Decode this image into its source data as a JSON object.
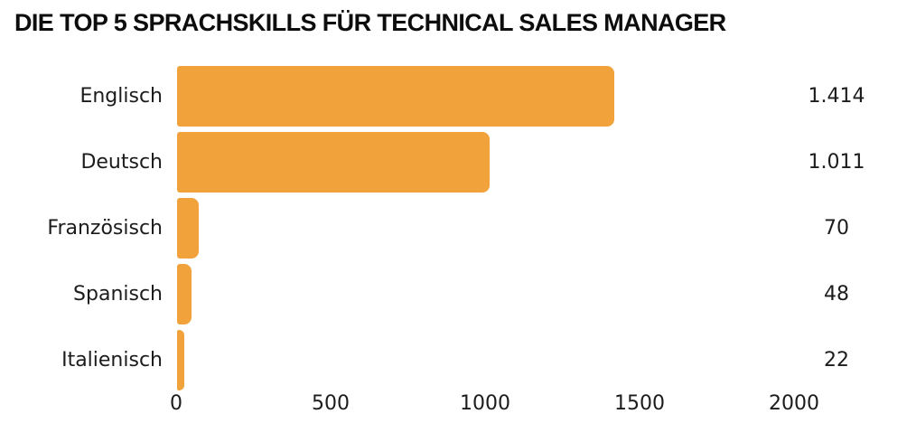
{
  "chart_data": {
    "type": "bar",
    "orientation": "horizontal",
    "title": "DIE TOP 5 SPRACHSKILLS FÜR TECHNICAL SALES MANAGER",
    "categories": [
      "Englisch",
      "Deutsch",
      "Französisch",
      "Spanisch",
      "Italienisch"
    ],
    "values": [
      1414,
      1011,
      70,
      48,
      22
    ],
    "value_labels": [
      "1.414",
      "1.011",
      "70",
      "48",
      "22"
    ],
    "xlabel": "",
    "ylabel": "",
    "xlim": [
      0,
      2000
    ],
    "x_ticks": [
      0,
      500,
      1000,
      1500,
      2000
    ],
    "x_tick_labels": [
      "0",
      "500",
      "1000",
      "1500",
      "2000"
    ],
    "bar_color": "#F2A23B",
    "text_color": "#1c1c1c",
    "title_color": "#0d0d0d",
    "background_color": "#FFFFFF",
    "grid": false,
    "legend": false
  }
}
